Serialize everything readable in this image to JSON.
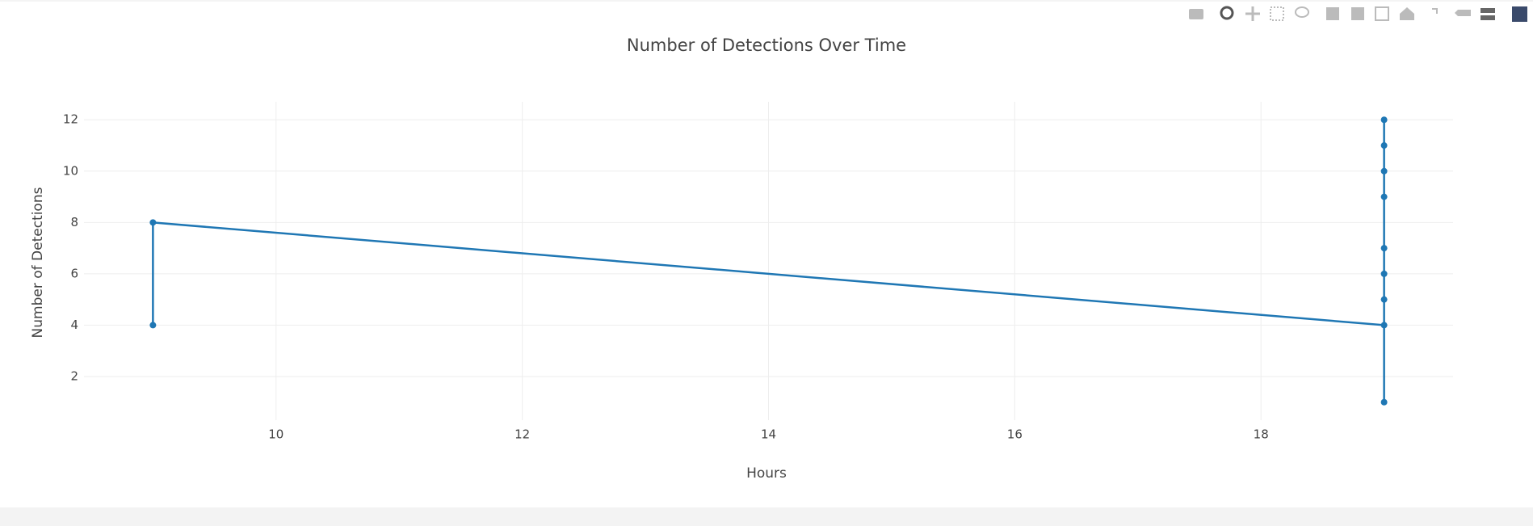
{
  "chart_data": {
    "type": "line",
    "title": "Number of Detections Over Time",
    "x_label": "Hours",
    "y_label": "Number of Detections",
    "x": [
      9,
      9,
      19,
      19,
      19,
      19,
      19,
      19,
      19,
      19,
      19
    ],
    "values": [
      4,
      8,
      4,
      1,
      5,
      6,
      7,
      9,
      10,
      11,
      12
    ],
    "color": "#1f77b4",
    "xlim": [
      8.44,
      19.56
    ],
    "xticks": [
      10,
      12,
      14,
      16,
      18
    ],
    "ylim": [
      0.3,
      12.7
    ],
    "yticks": [
      2,
      4,
      6,
      8,
      10,
      12
    ],
    "grid": true
  }
}
